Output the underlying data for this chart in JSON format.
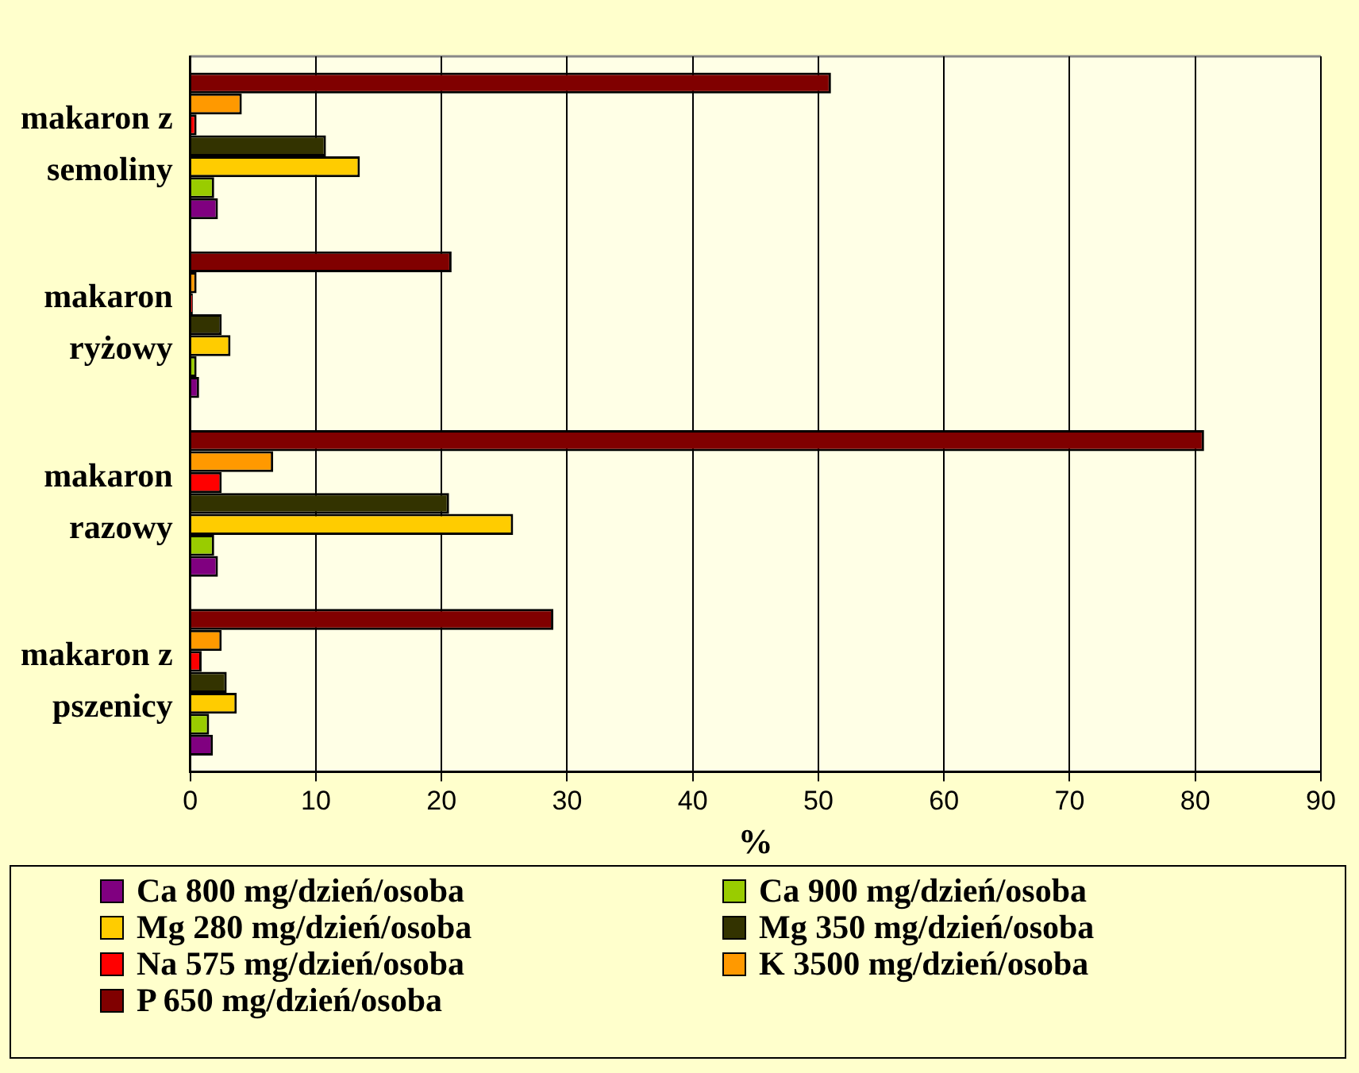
{
  "chart_data": {
    "type": "bar",
    "orientation": "horizontal",
    "xlabel": "%",
    "categories": [
      "makaron z semoliny",
      "makaron ryżowy",
      "makaron razowy",
      "makaron z pszenicy"
    ],
    "xlim": [
      0,
      90
    ],
    "xticks": [
      0,
      10,
      20,
      30,
      40,
      50,
      60,
      70,
      80,
      90
    ],
    "grid": "x",
    "legend": "bottom",
    "series": [
      {
        "name": "Ca 800 mg/dzień/osoba",
        "color": "#800080",
        "values": [
          2.2,
          0.7,
          2.2,
          1.8
        ]
      },
      {
        "name": "Ca 900 mg/dzień/osoba",
        "color": "#99cc00",
        "values": [
          1.9,
          0.5,
          1.9,
          1.5
        ]
      },
      {
        "name": "Mg 280 mg/dzień/osoba",
        "color": "#ffcc00",
        "values": [
          13.5,
          3.2,
          25.7,
          3.7
        ]
      },
      {
        "name": "Mg 350 mg/dzień/osoba",
        "color": "#333300",
        "values": [
          10.8,
          2.5,
          20.6,
          2.9
        ]
      },
      {
        "name": "Na 575 mg/dzień/osoba",
        "color": "#ff0000",
        "values": [
          0.5,
          0.2,
          2.5,
          0.9
        ]
      },
      {
        "name": "K 3500 mg/dzień/osoba",
        "color": "#ff9900",
        "values": [
          4.1,
          0.5,
          6.6,
          2.5
        ]
      },
      {
        "name": "P 650 mg/dzień/osoba",
        "color": "#800000",
        "values": [
          51,
          20.8,
          80.7,
          28.9
        ]
      }
    ]
  }
}
